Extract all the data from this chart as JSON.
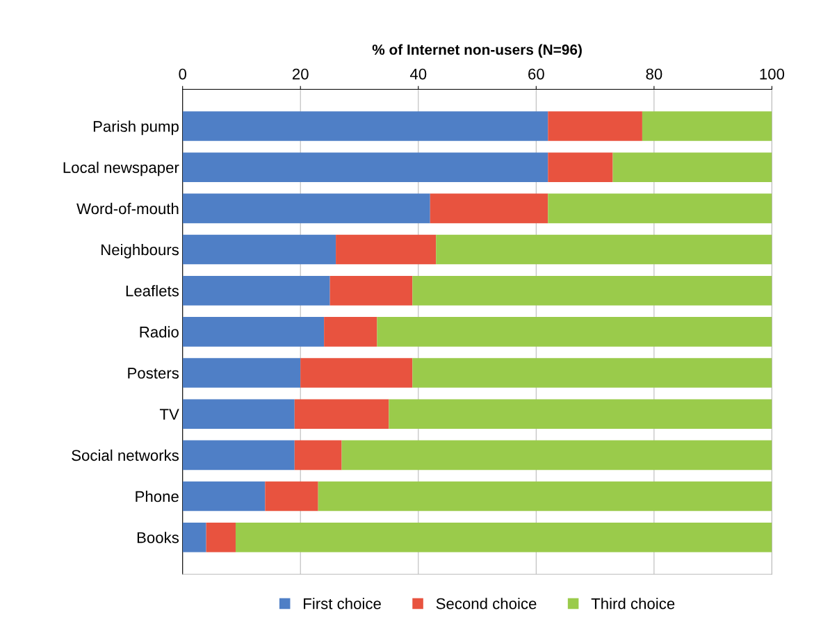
{
  "chart_data": {
    "type": "bar",
    "orientation": "horizontal",
    "stacked": true,
    "xlabel": "% of Internet non-users (N=96)",
    "categories": [
      "Parish pump",
      "Local newspaper",
      "Word-of-mouth",
      "Neighbours",
      "Leaflets",
      "Radio",
      "Posters",
      "TV",
      "Social networks",
      "Phone",
      "Books"
    ],
    "series": [
      {
        "name": "First choice",
        "color": "#4f7fc6",
        "values": [
          62,
          62,
          42,
          26,
          25,
          24,
          20,
          19,
          19,
          14,
          4
        ]
      },
      {
        "name": "Second choice",
        "color": "#e8533f",
        "values": [
          16,
          11,
          20,
          17,
          14,
          9,
          19,
          16,
          8,
          9,
          5
        ]
      },
      {
        "name": "Third choice",
        "color": "#9acb4b",
        "values": [
          22,
          27,
          38,
          57,
          61,
          67,
          61,
          65,
          73,
          77,
          91
        ]
      }
    ],
    "xlim": [
      0,
      100
    ],
    "xticks": [
      0,
      20,
      40,
      60,
      80,
      100
    ],
    "grid": "x",
    "legend": "bottom"
  }
}
